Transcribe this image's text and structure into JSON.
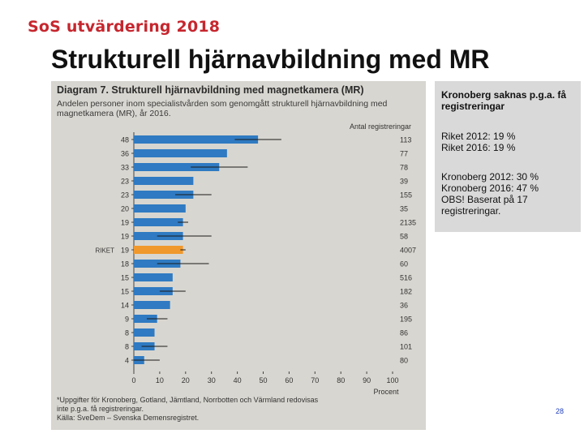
{
  "header": {
    "brand": "SoS utvärdering 2018",
    "title": "Strukturell hjärnavbildning med MR"
  },
  "figure": {
    "title": "Diagram 7. Strukturell hjärnavbildning med magnetkamera (MR)",
    "subtitle_lines": [
      "Andelen personer inom specialistvården som genomgått strukturell hjärnavbildning med",
      "magnetkamera (MR), år 2016."
    ],
    "count_header": "Antal registreringar",
    "xlabel": "Procent",
    "footnotes": [
      "*Uppgifter för Kronoberg, Gotland, Jämtland, Norrbotten och Värmland redovisas",
      "inte p.g.a. få registreringar.",
      "Källa: SveDem – Svenska Demensregistret."
    ]
  },
  "chart_data": {
    "type": "bar",
    "orientation": "horizontal",
    "title": "Diagram 7. Strukturell hjärnavbildning med magnetkamera (MR)",
    "xlabel": "Procent",
    "xlim": [
      0,
      100
    ],
    "xticks": [
      0,
      10,
      20,
      30,
      40,
      50,
      60,
      70,
      80,
      90,
      100
    ],
    "bar_color": "#2f7ac2",
    "highlight_color": "#f0982b",
    "errorbar_color": "#1a1a1a",
    "bars": [
      {
        "label": "48",
        "value": 48,
        "lo": 39,
        "hi": 57,
        "count": "113"
      },
      {
        "label": "36",
        "value": 36,
        "lo": 36,
        "hi": 36,
        "count": "77"
      },
      {
        "label": "33",
        "value": 33,
        "lo": 22,
        "hi": 44,
        "count": "78"
      },
      {
        "label": "23",
        "value": 23,
        "lo": 23,
        "hi": 23,
        "count": "39"
      },
      {
        "label": "23",
        "value": 23,
        "lo": 16,
        "hi": 30,
        "count": "155"
      },
      {
        "label": "20",
        "value": 20,
        "lo": 20,
        "hi": 20,
        "count": "35"
      },
      {
        "label": "19",
        "value": 19,
        "lo": 17,
        "hi": 21,
        "count": "2135"
      },
      {
        "label": "19",
        "value": 19,
        "lo": 9,
        "hi": 30,
        "count": "58"
      },
      {
        "label": "19",
        "value": 19,
        "lo": 18,
        "hi": 20,
        "count": "4007",
        "prefix": "RIKET",
        "highlight": true
      },
      {
        "label": "18",
        "value": 18,
        "lo": 9,
        "hi": 29,
        "count": "60"
      },
      {
        "label": "15",
        "value": 15,
        "lo": 15,
        "hi": 15,
        "count": "516"
      },
      {
        "label": "15",
        "value": 15,
        "lo": 10,
        "hi": 20,
        "count": "182"
      },
      {
        "label": "14",
        "value": 14,
        "lo": 14,
        "hi": 14,
        "count": "36"
      },
      {
        "label": "9",
        "value": 9,
        "lo": 5,
        "hi": 13,
        "count": "195"
      },
      {
        "label": "8",
        "value": 8,
        "lo": 8,
        "hi": 8,
        "count": "86"
      },
      {
        "label": "8",
        "value": 8,
        "lo": 3,
        "hi": 13,
        "count": "101"
      },
      {
        "label": "4",
        "value": 4,
        "lo": 0,
        "hi": 10,
        "count": "80"
      }
    ]
  },
  "sidebar": {
    "note": "Kronoberg saknas p.g.a. få registreringar",
    "riket": [
      "Riket 2012: 19 %",
      "Riket 2016: 19 %"
    ],
    "kronoberg": [
      "Kronoberg 2012: 30 %",
      "Kronoberg 2016: 47 %",
      "OBS! Baserat på 17 registreringar."
    ]
  },
  "page_number": "28"
}
